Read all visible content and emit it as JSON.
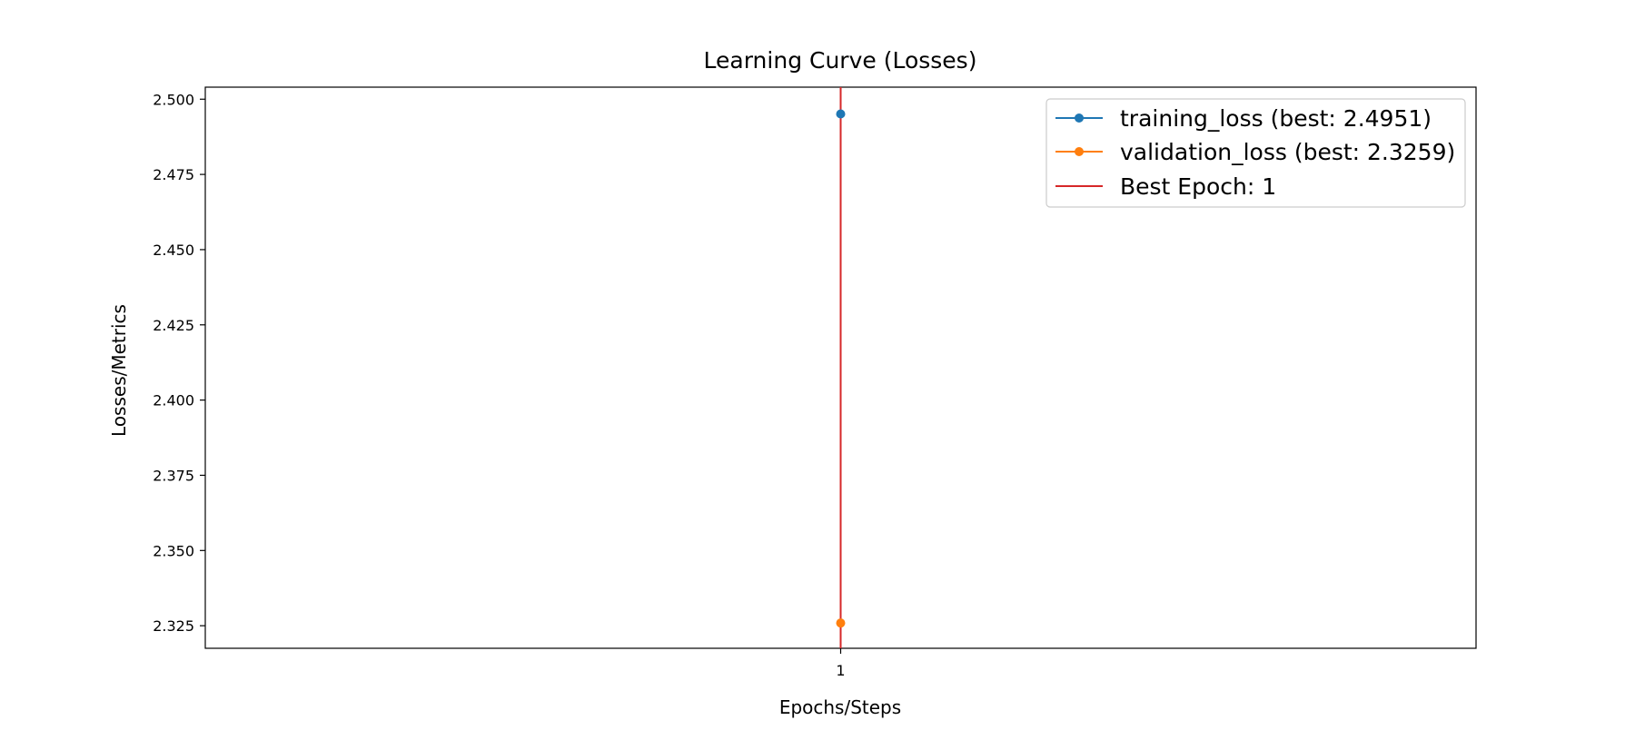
{
  "chart_data": {
    "type": "line",
    "title": "Learning Curve (Losses)",
    "xlabel": "Epochs/Steps",
    "ylabel": "Losses/Metrics",
    "x": [
      1
    ],
    "xticks": [
      1
    ],
    "xtick_labels": [
      "1"
    ],
    "xlim": [
      0.5,
      1.5
    ],
    "ylim": [
      2.3175,
      2.504
    ],
    "yticks": [
      2.325,
      2.35,
      2.375,
      2.4,
      2.425,
      2.45,
      2.475,
      2.5
    ],
    "ytick_labels": [
      "2.325",
      "2.350",
      "2.375",
      "2.400",
      "2.425",
      "2.450",
      "2.475",
      "2.500"
    ],
    "grid": false,
    "legend_position": "top-right",
    "series": [
      {
        "name": "training_loss (best: 2.4951)",
        "values": [
          2.4951
        ],
        "color": "#1f77b4",
        "marker": "circle"
      },
      {
        "name": "validation_loss (best: 2.3259)",
        "values": [
          2.3259
        ],
        "color": "#ff7f0e",
        "marker": "circle"
      }
    ],
    "reference_lines": [
      {
        "name": "Best Epoch: 1",
        "orientation": "vertical",
        "x": 1,
        "color": "#d62728"
      }
    ]
  }
}
